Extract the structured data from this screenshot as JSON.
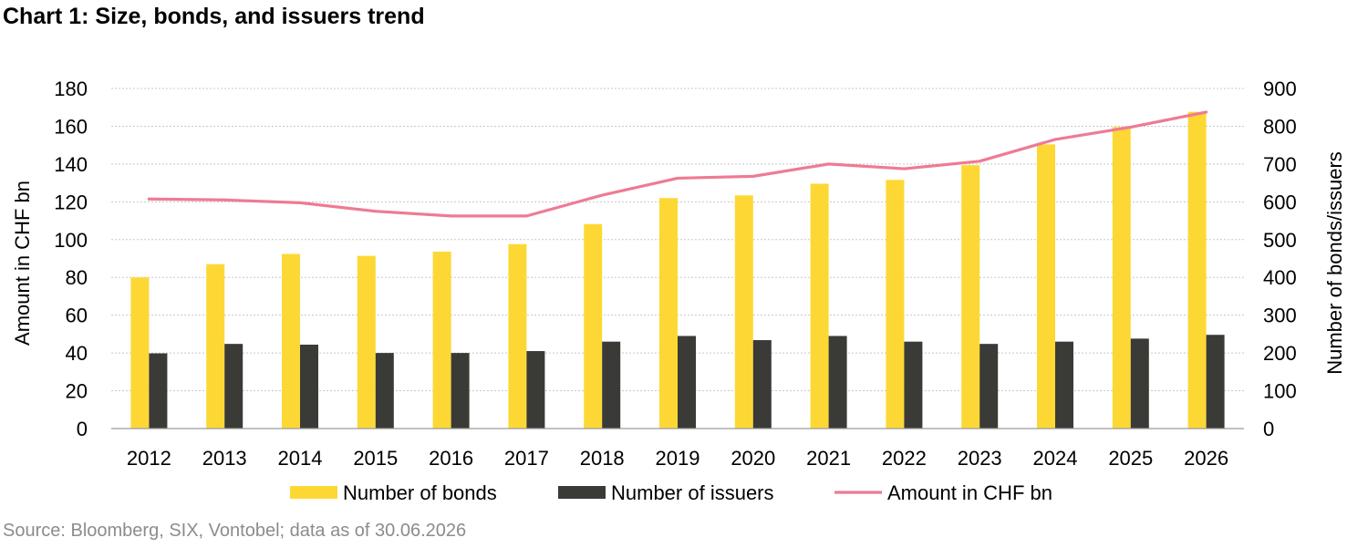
{
  "title": "Chart 1: Size, bonds, and issuers trend",
  "source": "Source: Bloomberg, SIX, Vontobel; data as of 30.06.2026",
  "chart_data": {
    "type": "bar",
    "title": "Chart 1: Size, bonds, and issuers trend",
    "categories": [
      "2012",
      "2013",
      "2014",
      "2015",
      "2016",
      "2017",
      "2018",
      "2019",
      "2020",
      "2021",
      "2022",
      "2023",
      "2024",
      "2025",
      "2026"
    ],
    "ylabel": "Amount in CHF bn",
    "y2label": "Number of bonds/issuers",
    "ylim": [
      0,
      180
    ],
    "y2lim": [
      0,
      900
    ],
    "yticks": [
      "0",
      "20",
      "40",
      "60",
      "80",
      "100",
      "120",
      "140",
      "160",
      "180"
    ],
    "y2ticks": [
      "0",
      "100",
      "200",
      "300",
      "400",
      "500",
      "600",
      "700",
      "800",
      "900"
    ],
    "grid": true,
    "legend_position": "bottom",
    "series": [
      {
        "name": "Number of bonds",
        "type": "bar",
        "axis": "right",
        "color": "#FDD835",
        "values": [
          400,
          435,
          462,
          457,
          468,
          488,
          541,
          610,
          617,
          648,
          658,
          697,
          752,
          798,
          838
        ]
      },
      {
        "name": "Number of issuers",
        "type": "bar",
        "axis": "right",
        "color": "#3A3B36",
        "values": [
          199,
          224,
          222,
          200,
          200,
          205,
          230,
          245,
          234,
          245,
          230,
          224,
          230,
          238,
          248
        ]
      },
      {
        "name": "Amount in CHF bn",
        "type": "line",
        "axis": "left",
        "color": "#EE7B93",
        "values": [
          121.5,
          121,
          119.5,
          115,
          112.5,
          112.5,
          123.5,
          132.5,
          133.5,
          140,
          137.5,
          141.5,
          153,
          159.5,
          167.5
        ]
      }
    ]
  }
}
